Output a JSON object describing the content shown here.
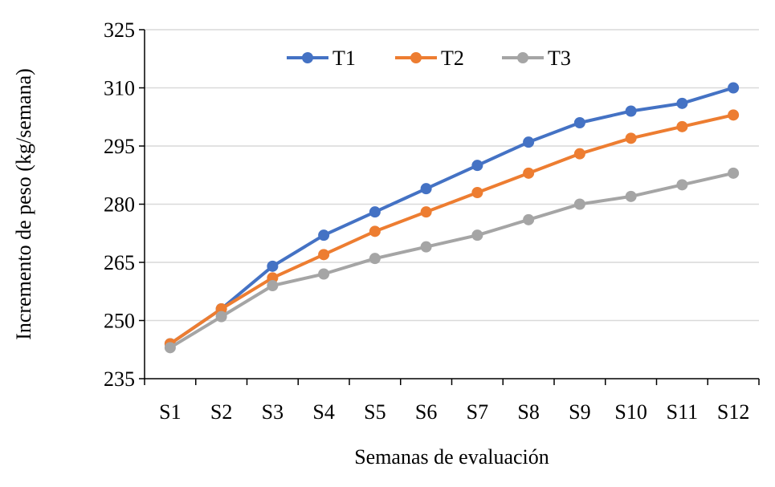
{
  "chart_data": {
    "type": "line",
    "title": "",
    "xlabel": "Semanas de evaluación",
    "ylabel": "Incremento de peso (kg/semana)",
    "categories": [
      "S1",
      "S2",
      "S3",
      "S4",
      "S5",
      "S6",
      "S7",
      "S8",
      "S9",
      "S10",
      "S11",
      "S12"
    ],
    "ylim": [
      235,
      325
    ],
    "yticks": [
      235,
      250,
      265,
      280,
      295,
      310,
      325
    ],
    "grid": true,
    "legend_position": "top",
    "series": [
      {
        "name": "T1",
        "color": "#4472C4",
        "values": [
          244,
          253,
          264,
          272,
          278,
          284,
          290,
          296,
          301,
          304,
          306,
          310
        ]
      },
      {
        "name": "T2",
        "color": "#ED7D31",
        "values": [
          244,
          253,
          261,
          267,
          273,
          278,
          283,
          288,
          293,
          297,
          300,
          303
        ]
      },
      {
        "name": "T3",
        "color": "#A5A5A5",
        "values": [
          243,
          251,
          259,
          262,
          266,
          269,
          272,
          276,
          280,
          282,
          285,
          288
        ]
      }
    ]
  }
}
